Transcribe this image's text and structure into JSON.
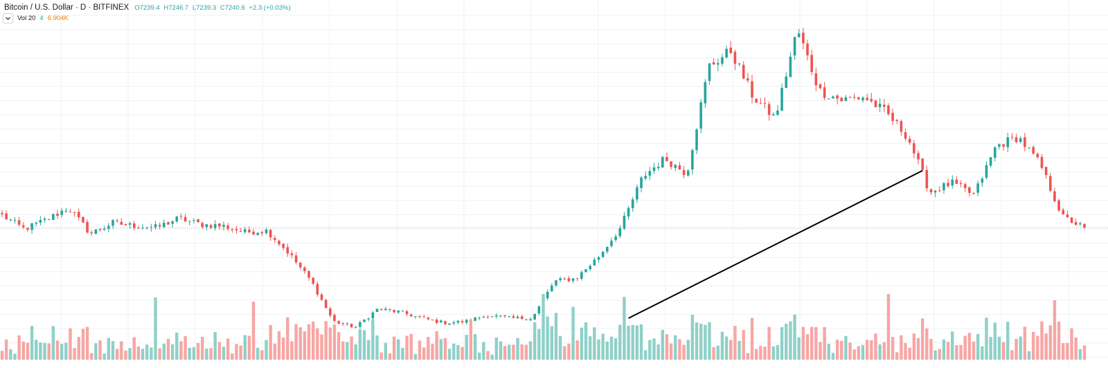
{
  "legend": {
    "symbol": "Bitcoin / U.S. Dollar · D · BITFINEX",
    "open": "O7239.4",
    "high": "H7246.7",
    "low": "L7239.3",
    "close": "C7240.6",
    "change": "+2.3 (+0.03%)"
  },
  "volume_legend": {
    "name": "Vol 20",
    "length": "4",
    "value": "6.904K"
  },
  "colors": {
    "up": "#26a69a",
    "down": "#ef5350",
    "volume_up": "#8fd0c8",
    "volume_down": "#f7a6a4",
    "grid": "#eef0f3",
    "last_price_line": "#b2b5be",
    "trend_line": "#000000"
  },
  "icons": {
    "collapse": "chevron-down-icon"
  },
  "chart_data": {
    "type": "candlestick",
    "series": [
      {
        "name": "Bitcoin / U.S. Dollar · D · BITFINEX",
        "anchor_closes": [
          7650,
          7200,
          7500,
          7900,
          7050,
          7400,
          7300,
          7250,
          7550,
          7350,
          7300,
          7100,
          7150,
          6400,
          5500,
          4200,
          4000,
          4600,
          4500,
          4300,
          4150,
          4200,
          4400,
          4300,
          4300,
          5500,
          5600,
          6300,
          7250,
          8900,
          9500,
          9000,
          12500,
          13000,
          11500,
          10800,
          13700,
          11700,
          11400,
          11500,
          11000,
          10200,
          8400,
          8700,
          8300,
          9900,
          10200,
          9300,
          7600,
          7240
        ]
      },
      {
        "name": "Volume",
        "type": "bar"
      }
    ],
    "last_close": 7240.6,
    "grid": true
  }
}
